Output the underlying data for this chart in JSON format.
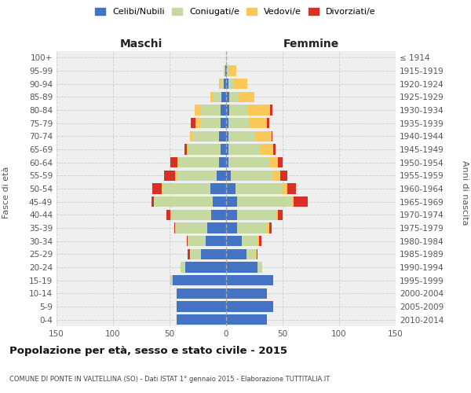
{
  "age_groups": [
    "0-4",
    "5-9",
    "10-14",
    "15-19",
    "20-24",
    "25-29",
    "30-34",
    "35-39",
    "40-44",
    "45-49",
    "50-54",
    "55-59",
    "60-64",
    "65-69",
    "70-74",
    "75-79",
    "80-84",
    "85-89",
    "90-94",
    "95-99",
    "100+"
  ],
  "birth_years": [
    "2010-2014",
    "2005-2009",
    "2000-2004",
    "1995-1999",
    "1990-1994",
    "1985-1989",
    "1980-1984",
    "1975-1979",
    "1970-1974",
    "1965-1969",
    "1960-1964",
    "1955-1959",
    "1950-1954",
    "1945-1949",
    "1940-1944",
    "1935-1939",
    "1930-1934",
    "1925-1929",
    "1920-1924",
    "1915-1919",
    "≤ 1914"
  ],
  "maschi": {
    "celibi": [
      44,
      44,
      44,
      47,
      36,
      22,
      18,
      17,
      13,
      12,
      14,
      8,
      6,
      5,
      6,
      5,
      5,
      4,
      2,
      1,
      0
    ],
    "coniugati": [
      0,
      0,
      0,
      2,
      4,
      10,
      16,
      28,
      36,
      52,
      42,
      36,
      36,
      28,
      24,
      18,
      18,
      8,
      3,
      1,
      0
    ],
    "vedovi": [
      0,
      0,
      0,
      0,
      0,
      0,
      0,
      0,
      0,
      0,
      1,
      1,
      1,
      2,
      2,
      4,
      5,
      2,
      1,
      0,
      0
    ],
    "divorziati": [
      0,
      0,
      0,
      0,
      0,
      2,
      1,
      1,
      4,
      2,
      8,
      10,
      6,
      2,
      0,
      4,
      0,
      0,
      0,
      0,
      0
    ]
  },
  "femmine": {
    "nubili": [
      36,
      42,
      36,
      42,
      28,
      18,
      14,
      10,
      10,
      10,
      8,
      4,
      2,
      2,
      2,
      2,
      3,
      3,
      2,
      1,
      0
    ],
    "coniugate": [
      0,
      0,
      0,
      0,
      4,
      8,
      14,
      26,
      34,
      48,
      42,
      38,
      36,
      28,
      24,
      18,
      16,
      8,
      5,
      2,
      0
    ],
    "vedove": [
      0,
      0,
      0,
      0,
      0,
      1,
      1,
      2,
      2,
      2,
      4,
      6,
      8,
      12,
      14,
      16,
      20,
      14,
      12,
      6,
      0
    ],
    "divorziate": [
      0,
      0,
      0,
      0,
      0,
      1,
      2,
      2,
      4,
      12,
      8,
      6,
      4,
      2,
      1,
      2,
      2,
      0,
      0,
      0,
      0
    ]
  },
  "colors": {
    "celibi": "#4472c4",
    "coniugati": "#c5d9a0",
    "vedovi": "#fac858",
    "divorziati": "#d73027"
  },
  "title": "Popolazione per età, sesso e stato civile - 2015",
  "subtitle": "COMUNE DI PONTE IN VALTELLINA (SO) - Dati ISTAT 1° gennaio 2015 - Elaborazione TUTTITALIA.IT",
  "xlabel_left": "Maschi",
  "xlabel_right": "Femmine",
  "ylabel_left": "Fasce di età",
  "ylabel_right": "Anni di nascita",
  "xlim": 150,
  "legend_labels": [
    "Celibi/Nubili",
    "Coniugati/e",
    "Vedovi/e",
    "Divorziati/e"
  ],
  "background_color": "#ffffff",
  "plot_bg": "#efefef",
  "grid_color": "#cccccc"
}
